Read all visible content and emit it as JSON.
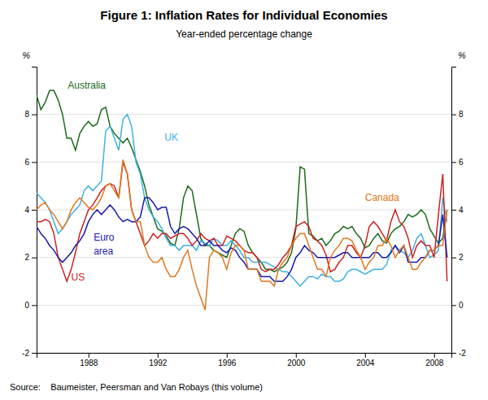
{
  "chart_data": {
    "type": "line",
    "title": "Figure 1: Inflation Rates for Individual Economies",
    "subtitle": "Year-ended percentage change",
    "source": "Source:    Baumeister, Peersman and Van Robays (this volume)",
    "ylabel": "%",
    "y2label": "%",
    "x": [
      1985.0,
      1985.25,
      1985.5,
      1985.75,
      1986.0,
      1986.25,
      1986.5,
      1986.75,
      1987.0,
      1987.25,
      1987.5,
      1987.75,
      1988.0,
      1988.25,
      1988.5,
      1988.75,
      1989.0,
      1989.25,
      1989.5,
      1989.75,
      1990.0,
      1990.25,
      1990.5,
      1990.75,
      1991.0,
      1991.25,
      1991.5,
      1991.75,
      1992.0,
      1992.25,
      1992.5,
      1992.75,
      1993.0,
      1993.25,
      1993.5,
      1993.75,
      1994.0,
      1994.25,
      1994.5,
      1994.75,
      1995.0,
      1995.25,
      1995.5,
      1995.75,
      1996.0,
      1996.25,
      1996.5,
      1996.75,
      1997.0,
      1997.25,
      1997.5,
      1997.75,
      1998.0,
      1998.25,
      1998.5,
      1998.75,
      1999.0,
      1999.25,
      1999.5,
      1999.75,
      2000.0,
      2000.25,
      2000.5,
      2000.75,
      2001.0,
      2001.25,
      2001.5,
      2001.75,
      2002.0,
      2002.25,
      2002.5,
      2002.75,
      2003.0,
      2003.25,
      2003.5,
      2003.75,
      2004.0,
      2004.25,
      2004.5,
      2004.75,
      2005.0,
      2005.25,
      2005.5,
      2005.75,
      2006.0,
      2006.25,
      2006.5,
      2006.75,
      2007.0,
      2007.25,
      2007.5,
      2007.75,
      2008.0,
      2008.25,
      2008.5,
      2008.75
    ],
    "xlim": [
      1985.0,
      2009.0
    ],
    "xticks": [
      1988,
      1992,
      1996,
      2000,
      2004,
      2008
    ],
    "ylim": [
      -2,
      10
    ],
    "yticks": [
      -2,
      0,
      2,
      4,
      6,
      8
    ],
    "y2lim": [
      -2,
      10
    ],
    "y2ticks": [
      -2,
      0,
      2,
      4,
      6,
      8
    ],
    "grid": true,
    "series": [
      {
        "name": "Australia",
        "color": "#1a6b1a",
        "values": [
          8.8,
          8.2,
          8.5,
          9.0,
          9.0,
          8.6,
          8.0,
          7.0,
          7.0,
          6.5,
          7.2,
          7.5,
          7.7,
          7.5,
          7.6,
          8.2,
          8.3,
          7.5,
          7.2,
          7.0,
          6.8,
          7.0,
          6.6,
          6.1,
          5.6,
          5.0,
          4.2,
          3.7,
          3.2,
          3.1,
          2.9,
          2.6,
          2.5,
          3.2,
          4.5,
          5.0,
          4.8,
          3.8,
          2.8,
          2.5,
          2.5,
          2.3,
          2.2,
          2.1,
          2.0,
          2.5,
          3.0,
          3.2,
          3.1,
          2.5,
          2.2,
          2.0,
          1.8,
          1.5,
          1.5,
          1.4,
          1.5,
          1.6,
          1.8,
          2.2,
          3.2,
          5.8,
          5.7,
          3.0,
          2.9,
          2.7,
          2.8,
          2.5,
          2.7,
          3.0,
          3.1,
          3.3,
          3.2,
          3.3,
          3.0,
          2.8,
          2.4,
          2.5,
          2.8,
          3.0,
          2.7,
          2.6,
          3.0,
          3.2,
          3.3,
          3.5,
          3.8,
          3.7,
          3.8,
          4.0,
          3.8,
          3.2,
          2.9,
          2.6,
          2.8,
          4.0
        ]
      },
      {
        "name": "UK",
        "color": "#40b0e0",
        "values": [
          4.7,
          4.5,
          4.3,
          4.0,
          3.5,
          3.0,
          3.2,
          3.5,
          3.8,
          4.0,
          4.2,
          4.8,
          5.0,
          4.8,
          5.0,
          5.2,
          7.3,
          7.5,
          7.0,
          6.5,
          7.8,
          8.0,
          7.5,
          6.0,
          5.5,
          4.5,
          4.0,
          3.7,
          3.5,
          3.2,
          2.8,
          2.5,
          2.5,
          2.3,
          2.5,
          2.5,
          2.5,
          2.3,
          2.7,
          2.6,
          2.5,
          2.8,
          2.7,
          2.5,
          2.5,
          2.7,
          2.5,
          2.3,
          2.0,
          2.0,
          1.8,
          1.8,
          1.8,
          1.8,
          1.7,
          1.6,
          1.5,
          1.4,
          1.4,
          1.2,
          1.0,
          0.8,
          1.0,
          1.2,
          1.2,
          1.1,
          1.3,
          1.2,
          1.2,
          1.0,
          1.0,
          1.1,
          1.4,
          1.5,
          1.5,
          1.4,
          1.3,
          1.4,
          1.5,
          1.5,
          1.5,
          1.7,
          2.3,
          2.5,
          2.3,
          2.2,
          2.0,
          2.3,
          2.8,
          3.0,
          2.5,
          2.0,
          2.1,
          2.3,
          4.5,
          3.5
        ]
      },
      {
        "name": "US",
        "color": "#cc2222",
        "values": [
          3.5,
          3.5,
          3.6,
          3.5,
          3.0,
          2.0,
          1.5,
          1.0,
          1.5,
          2.2,
          3.0,
          3.5,
          4.0,
          4.2,
          4.5,
          4.8,
          5.0,
          5.1,
          5.0,
          4.5,
          6.0,
          5.5,
          4.0,
          3.5,
          3.0,
          2.5,
          2.7,
          3.0,
          2.8,
          3.0,
          3.0,
          2.8,
          2.9,
          3.0,
          3.0,
          2.8,
          2.5,
          2.7,
          3.0,
          2.8,
          2.7,
          2.8,
          2.5,
          2.5,
          2.9,
          2.8,
          2.7,
          2.5,
          2.3,
          2.2,
          2.2,
          2.0,
          1.5,
          1.4,
          1.5,
          1.5,
          1.7,
          2.0,
          2.2,
          2.5,
          3.3,
          3.4,
          3.5,
          3.3,
          2.8,
          2.7,
          2.5,
          2.1,
          1.4,
          1.5,
          1.8,
          2.0,
          2.5,
          2.5,
          2.2,
          2.0,
          2.5,
          3.3,
          3.5,
          3.3,
          3.0,
          2.7,
          3.5,
          4.0,
          3.5,
          3.3,
          2.8,
          2.0,
          2.5,
          2.7,
          2.5,
          2.5,
          2.0,
          3.8,
          5.5,
          1.0
        ]
      },
      {
        "name": "Euro area",
        "color": "#1a1aaa",
        "values": [
          3.3,
          3.0,
          2.8,
          2.5,
          2.3,
          2.0,
          1.8,
          2.0,
          2.2,
          2.5,
          2.7,
          3.0,
          3.5,
          3.8,
          4.0,
          3.8,
          4.0,
          4.2,
          4.0,
          3.7,
          3.5,
          3.6,
          3.5,
          3.5,
          3.7,
          4.5,
          4.5,
          4.3,
          4.0,
          4.1,
          4.1,
          3.3,
          3.0,
          3.2,
          3.3,
          3.2,
          3.0,
          2.8,
          2.5,
          2.5,
          2.7,
          2.5,
          2.5,
          2.3,
          2.2,
          2.4,
          2.3,
          2.0,
          1.8,
          1.5,
          1.5,
          1.5,
          1.2,
          1.2,
          1.2,
          1.0,
          1.0,
          1.0,
          1.2,
          1.5,
          2.0,
          2.2,
          2.5,
          2.3,
          2.2,
          2.0,
          2.0,
          2.0,
          2.0,
          2.0,
          2.1,
          2.2,
          2.2,
          2.0,
          2.0,
          2.0,
          2.0,
          2.0,
          2.2,
          2.2,
          2.0,
          2.0,
          2.2,
          2.5,
          2.2,
          2.5,
          1.8,
          1.8,
          1.8,
          2.0,
          2.0,
          2.3,
          2.3,
          2.5,
          3.8,
          2.0
        ]
      },
      {
        "name": "Canada",
        "color": "#e07820",
        "values": [
          4.0,
          4.2,
          4.3,
          4.0,
          3.8,
          3.5,
          3.2,
          3.5,
          4.0,
          4.3,
          4.5,
          4.3,
          4.1,
          4.0,
          4.2,
          4.5,
          5.0,
          5.1,
          4.8,
          4.5,
          6.1,
          5.5,
          4.0,
          3.5,
          3.5,
          2.5,
          2.0,
          1.8,
          1.8,
          2.0,
          1.5,
          1.2,
          1.2,
          1.5,
          2.0,
          2.3,
          1.5,
          0.8,
          0.3,
          -0.2,
          2.0,
          2.3,
          2.2,
          2.0,
          1.5,
          2.2,
          2.5,
          2.5,
          2.3,
          1.5,
          1.5,
          1.5,
          1.0,
          1.0,
          1.0,
          0.8,
          1.5,
          1.8,
          2.0,
          2.5,
          2.8,
          3.0,
          3.0,
          2.5,
          2.0,
          1.5,
          1.5,
          1.2,
          2.0,
          2.3,
          2.5,
          2.8,
          2.8,
          2.7,
          2.3,
          2.0,
          1.5,
          1.8,
          2.0,
          2.5,
          2.5,
          2.8,
          2.5,
          2.0,
          2.3,
          2.5,
          2.0,
          1.5,
          1.5,
          1.8,
          2.0,
          2.3,
          2.3,
          2.5,
          2.5,
          4.0
        ]
      }
    ],
    "annotations": [
      {
        "text": "Australia",
        "x": 1986.8,
        "y": 9.2,
        "color": "#1a6b1a"
      },
      {
        "text": "UK",
        "x": 1992.4,
        "y": 7.0,
        "color": "#40b0e0"
      },
      {
        "text": "US",
        "x": 1987.0,
        "y": 1.15,
        "color": "#cc2222"
      },
      {
        "text": "Euro",
        "x": 1988.3,
        "y": 2.8,
        "color": "#1a1aaa"
      },
      {
        "text": "area",
        "x": 1988.3,
        "y": 2.25,
        "color": "#1a1aaa"
      },
      {
        "text": "Canada",
        "x": 2004.0,
        "y": 4.5,
        "color": "#e07820"
      }
    ]
  }
}
